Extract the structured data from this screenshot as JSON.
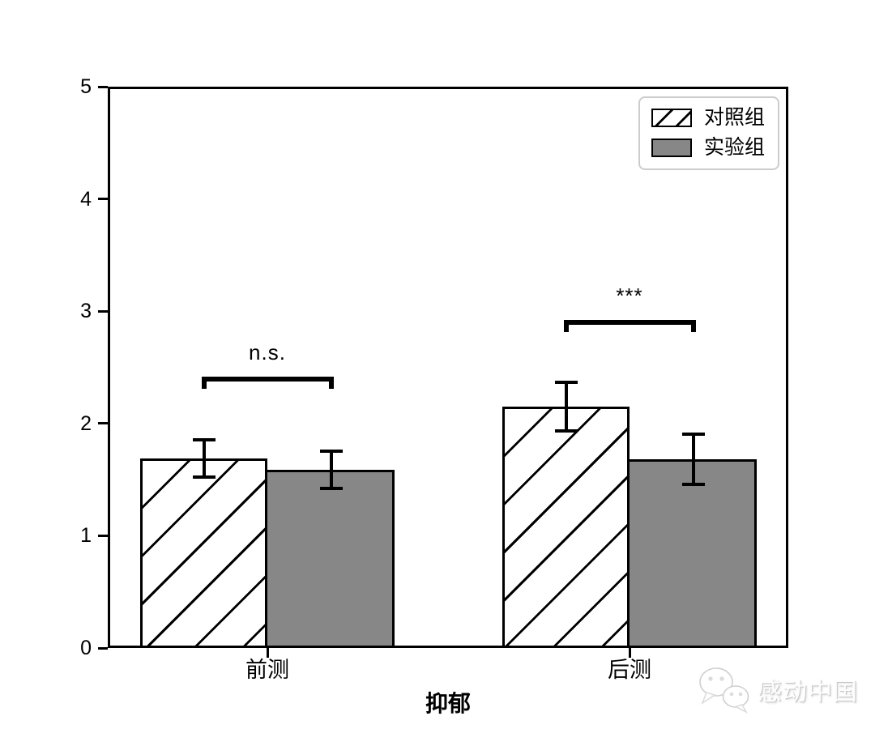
{
  "chart_data": {
    "type": "bar",
    "title": "",
    "xlabel": "抑郁",
    "ylabel": "",
    "ylim": [
      0,
      5
    ],
    "yticks": [
      "0",
      "1",
      "2",
      "3",
      "4",
      "5"
    ],
    "categories": [
      "前测",
      "后测"
    ],
    "series": [
      {
        "name": "对照组",
        "fill": "#ffffff",
        "hatch": "/",
        "edge_color": "#000000",
        "values": [
          1.69,
          2.15
        ],
        "errors": [
          0.18,
          0.23
        ]
      },
      {
        "name": "实验组",
        "fill": "#878787",
        "hatch": null,
        "edge_color": "#000000",
        "values": [
          1.59,
          1.68
        ],
        "errors": [
          0.18,
          0.24
        ]
      }
    ],
    "annotations": [
      {
        "category": "前测",
        "label": "n.s.",
        "y": 2.42
      },
      {
        "category": "后测",
        "label": "***",
        "y": 2.92
      }
    ],
    "legend": {
      "position": "upper right",
      "entries": [
        "对照组",
        "实验组"
      ]
    },
    "grid": false
  },
  "watermark": {
    "text": "感动中国",
    "icon": "wechat-logo"
  }
}
